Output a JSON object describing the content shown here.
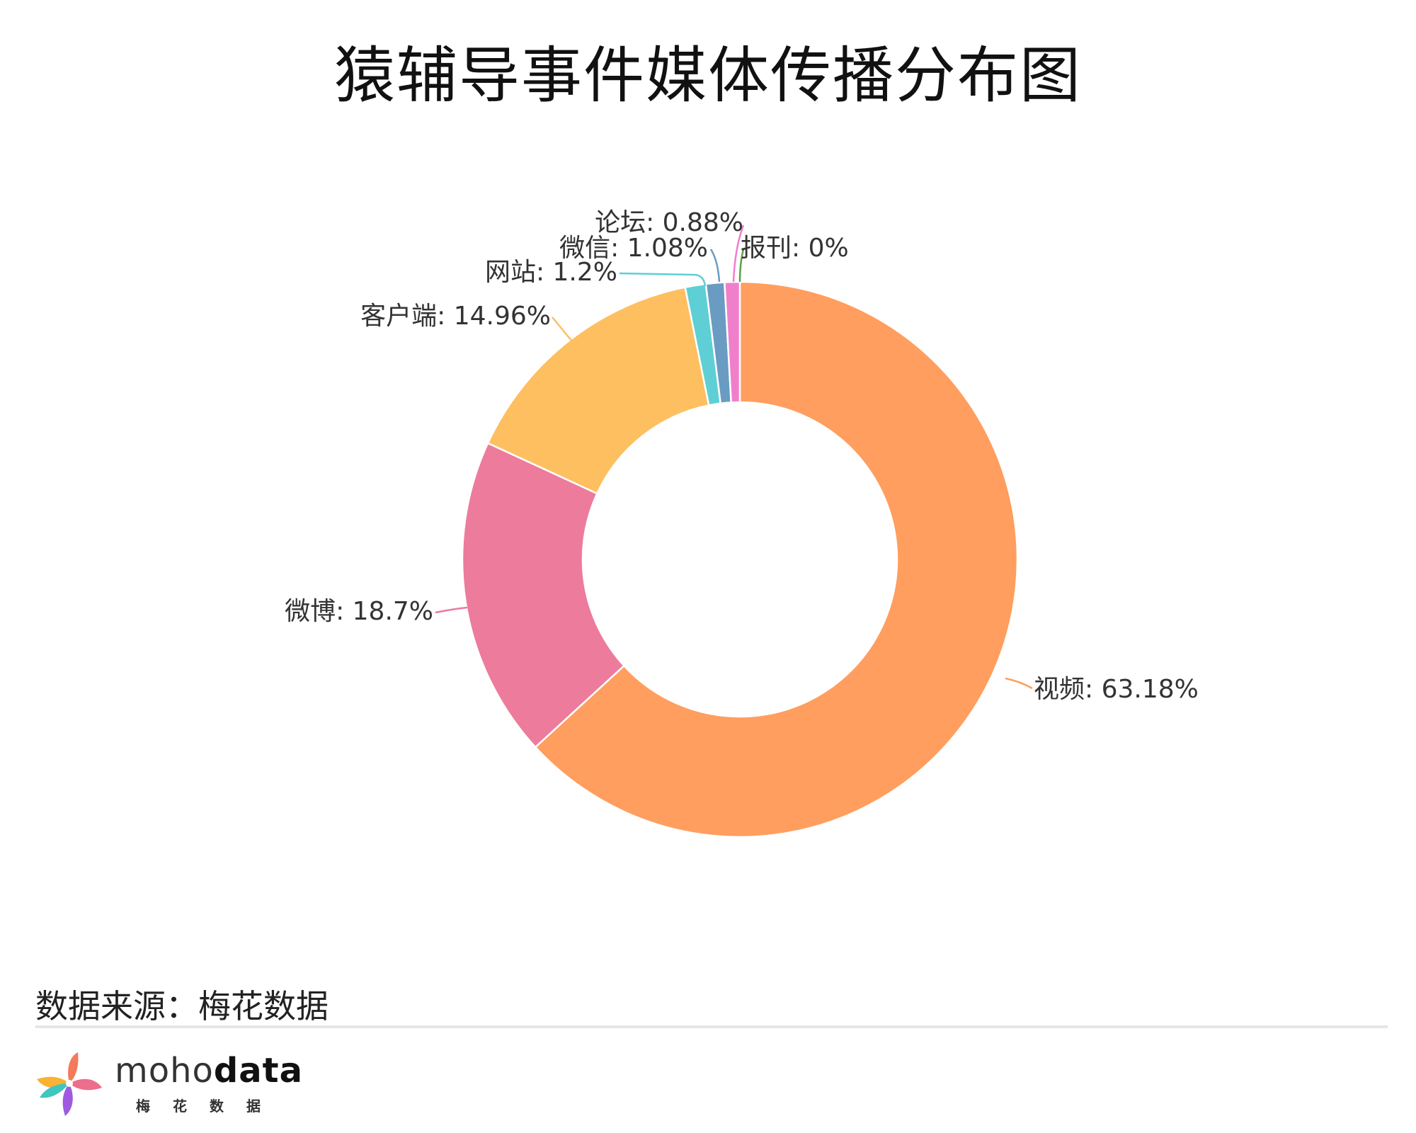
{
  "title": "猿辅导事件媒体传播分布图",
  "source": "数据来源：梅花数据",
  "brand": {
    "name_light": "moho",
    "name_bold": "data",
    "subtitle": "梅花数据"
  },
  "chart_data": {
    "type": "pie",
    "variant": "donut",
    "title": "猿辅导事件媒体传播分布图",
    "unit": "%",
    "slices": [
      {
        "label": "视频",
        "value": 63.18,
        "display": "视频: 63.18%",
        "color": "#FF9E5E"
      },
      {
        "label": "微博",
        "value": 18.7,
        "display": "微博: 18.7%",
        "color": "#EC7B9C"
      },
      {
        "label": "客户端",
        "value": 14.96,
        "display": "客户端: 14.96%",
        "color": "#FDBF60"
      },
      {
        "label": "网站",
        "value": 1.2,
        "display": "网站: 1.2%",
        "color": "#5ECFD4"
      },
      {
        "label": "微信",
        "value": 1.08,
        "display": "微信: 1.08%",
        "color": "#6A9BC3"
      },
      {
        "label": "论坛",
        "value": 0.88,
        "display": "论坛: 0.88%",
        "color": "#F07FCB"
      },
      {
        "label": "报刊",
        "value": 0,
        "display": "报刊: 0%",
        "color": "#5E9E4A"
      }
    ]
  }
}
